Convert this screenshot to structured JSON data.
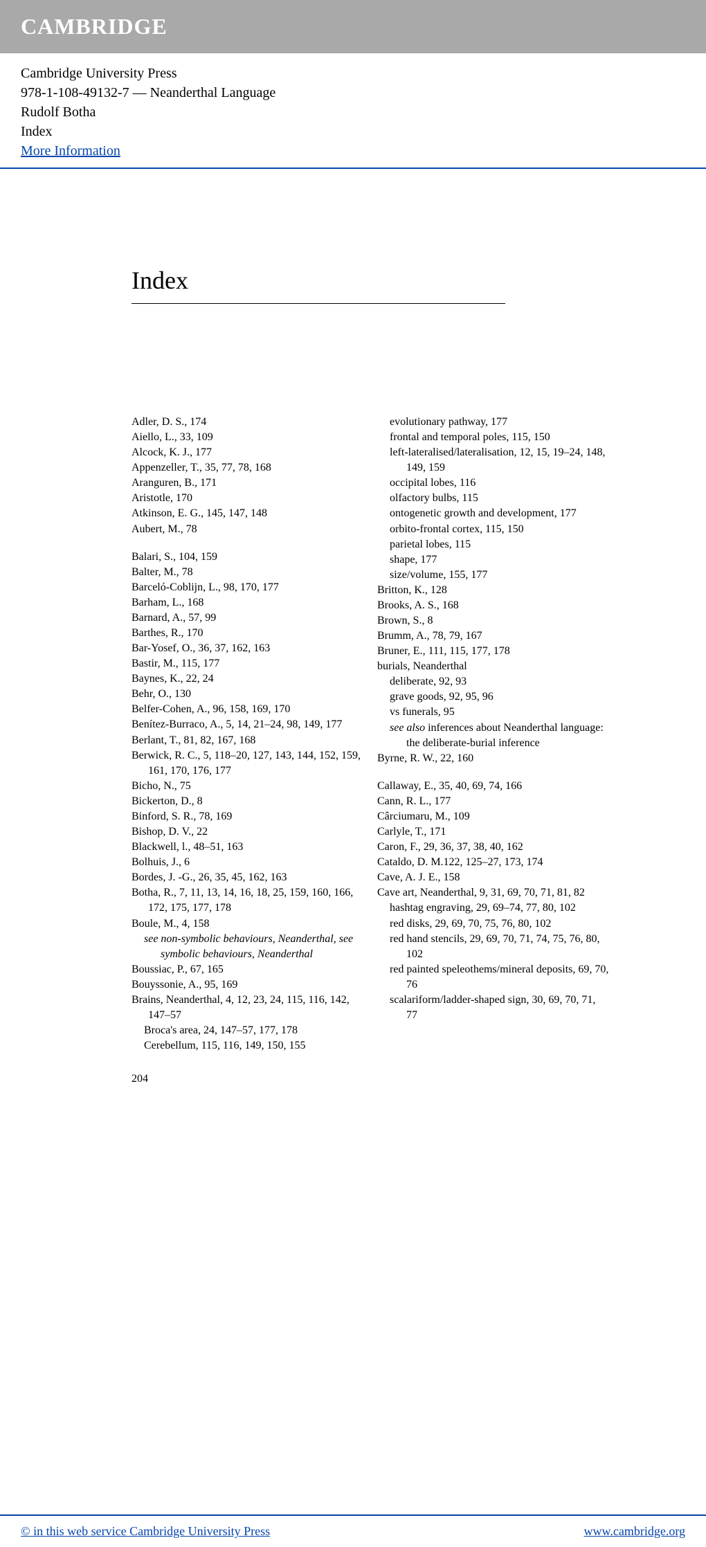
{
  "header": {
    "logo": "CAMBRIDGE"
  },
  "meta": {
    "publisher": "Cambridge University Press",
    "isbn_title": "978-1-108-49132-7 — Neanderthal Language",
    "author": "Rudolf Botha",
    "section": "Index",
    "more_info": "More Information"
  },
  "index": {
    "title": "Index",
    "page_number": "204",
    "left": [
      {
        "t": "Adler, D. S., 174"
      },
      {
        "t": "Aiello, L., 33, 109"
      },
      {
        "t": "Alcock, K. J., 177"
      },
      {
        "t": "Appenzeller, T., 35, 77, 78, 168"
      },
      {
        "t": "Aranguren, B., 171"
      },
      {
        "t": "Aristotle, 170"
      },
      {
        "t": "Atkinson, E. G., 145, 147, 148"
      },
      {
        "t": "Aubert, M., 78"
      },
      {
        "gap": true
      },
      {
        "t": "Balari, S., 104, 159"
      },
      {
        "t": "Balter, M., 78"
      },
      {
        "t": "Barceló-Coblijn, L., 98, 170, 177"
      },
      {
        "t": "Barham, L., 168"
      },
      {
        "t": "Barnard, A., 57, 99"
      },
      {
        "t": "Barthes, R., 170"
      },
      {
        "t": "Bar-Yosef, O., 36, 37, 162, 163"
      },
      {
        "t": "Bastir, M., 115, 177"
      },
      {
        "t": "Baynes, K., 22, 24"
      },
      {
        "t": "Behr, O., 130"
      },
      {
        "t": "Belfer-Cohen, A., 96, 158, 169, 170"
      },
      {
        "t": "Benítez-Burraco, A., 5, 14, 21–24, 98, 149, 177"
      },
      {
        "t": "Berlant, T., 81, 82, 167, 168"
      },
      {
        "t": "Berwick, R. C., 5, 118–20, 127, 143, 144, 152, 159, 161, 170, 176, 177"
      },
      {
        "t": "Bicho, N., 75"
      },
      {
        "t": "Bickerton, D., 8"
      },
      {
        "t": "Binford, S. R., 78, 169"
      },
      {
        "t": "Bishop, D. V., 22"
      },
      {
        "t": "Blackwell, l., 48–51, 163"
      },
      {
        "t": "Bolhuis, J., 6"
      },
      {
        "t": "Bordes, J. -G., 26, 35, 45, 162, 163"
      },
      {
        "t": "Botha, R., 7, 11, 13, 14, 16, 18, 25, 159, 160, 166, 172, 175, 177, 178"
      },
      {
        "t": "Boule, M., 4, 158"
      },
      {
        "t": "see non-symbolic behaviours, Neanderthal, see symbolic behaviours, Neanderthal",
        "sub": true,
        "italic": true
      },
      {
        "t": "Boussiac, P., 67, 165"
      },
      {
        "t": "Bouyssonie, A., 95, 169"
      },
      {
        "t": "Brains, Neanderthal, 4, 12, 23, 24, 115, 116, 142, 147–57"
      },
      {
        "t": "Broca's area, 24, 147–57, 177, 178",
        "sub": true
      },
      {
        "t": "Cerebellum, 115, 116, 149, 150, 155",
        "sub": true
      }
    ],
    "right": [
      {
        "t": "evolutionary pathway, 177",
        "sub": true
      },
      {
        "t": "frontal and temporal poles, 115, 150",
        "sub": true
      },
      {
        "t": "left-lateralised/lateralisation, 12, 15, 19–24, 148, 149, 159",
        "sub": true
      },
      {
        "t": "occipital lobes, 116",
        "sub": true
      },
      {
        "t": "olfactory bulbs, 115",
        "sub": true
      },
      {
        "t": "ontogenetic growth and development, 177",
        "sub": true
      },
      {
        "t": "orbito-frontal cortex, 115, 150",
        "sub": true
      },
      {
        "t": "parietal lobes, 115",
        "sub": true
      },
      {
        "t": "shape, 177",
        "sub": true
      },
      {
        "t": "size/volume, 155, 177",
        "sub": true
      },
      {
        "t": "Britton, K., 128"
      },
      {
        "t": "Brooks, A. S., 168"
      },
      {
        "t": "Brown, S., 8"
      },
      {
        "t": "Brumm, A., 78, 79, 167"
      },
      {
        "t": "Bruner, E., 111, 115, 177, 178"
      },
      {
        "t": "burials, Neanderthal"
      },
      {
        "t": "deliberate, 92, 93",
        "sub": true
      },
      {
        "t": "grave goods, 92, 95, 96",
        "sub": true
      },
      {
        "t": "vs funerals, 95",
        "sub": true
      },
      {
        "t": "see also inferences about Neanderthal language: the deliberate-burial inference",
        "sub": true,
        "italic_lead": "see also"
      },
      {
        "t": "Byrne, R. W., 22, 160"
      },
      {
        "gap": true
      },
      {
        "t": "Callaway, E., 35, 40, 69, 74, 166"
      },
      {
        "t": "Cann, R. L., 177"
      },
      {
        "t": "Cârciumaru, M., 109"
      },
      {
        "t": "Carlyle, T., 171"
      },
      {
        "t": "Caron, F., 29, 36, 37, 38, 40, 162"
      },
      {
        "t": "Cataldo, D. M.122, 125–27, 173, 174"
      },
      {
        "t": "Cave, A. J. E., 158"
      },
      {
        "t": "Cave art, Neanderthal, 9, 31, 69, 70, 71, 81, 82"
      },
      {
        "t": "hashtag engraving, 29, 69–74, 77, 80, 102",
        "sub": true
      },
      {
        "t": "red disks, 29, 69, 70, 75, 76, 80, 102",
        "sub": true
      },
      {
        "t": "red hand stencils, 29, 69, 70, 71, 74, 75, 76, 80, 102",
        "sub": true
      },
      {
        "t": "red painted speleothems/mineral deposits, 69, 70, 76",
        "sub": true
      },
      {
        "t": "scalariform/ladder-shaped sign, 30, 69, 70, 71, 77",
        "sub": true
      }
    ]
  },
  "footer": {
    "copyright": "© in this web service Cambridge University Press",
    "url": "www.cambridge.org"
  }
}
